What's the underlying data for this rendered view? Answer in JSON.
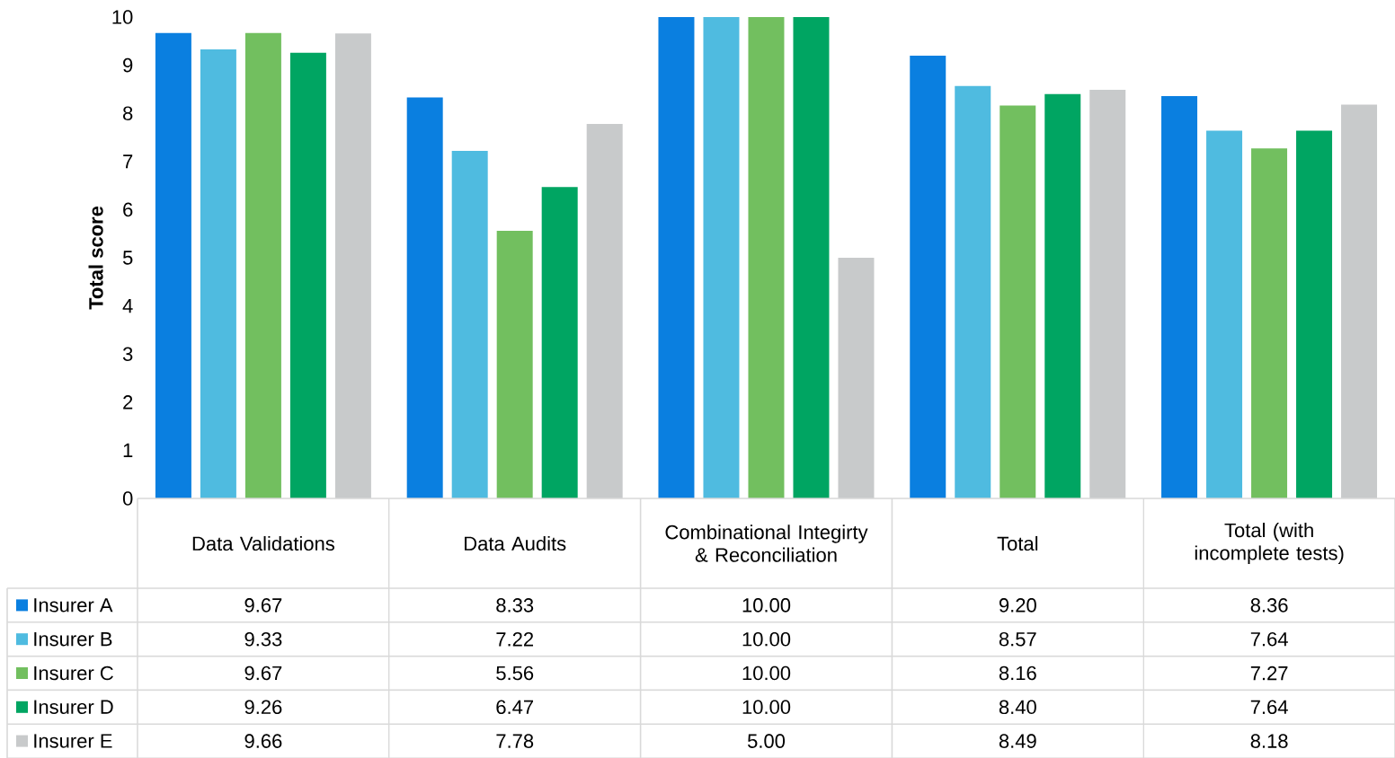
{
  "chart_data": {
    "type": "bar",
    "ylabel": "Total score",
    "categories": [
      "Data Validations",
      "Data Audits",
      "Combinational Integirty & Reconciliation",
      "Total",
      "Total (with incomplete tests)"
    ],
    "series": [
      {
        "name": "Insurer A",
        "color": "#0a7fe0",
        "values": [
          9.67,
          8.33,
          10.0,
          9.2,
          8.36
        ],
        "value_labels": [
          "9.67",
          "8.33",
          "10.00",
          "9.20",
          "8.36"
        ]
      },
      {
        "name": "Insurer B",
        "color": "#4fbbe0",
        "values": [
          9.33,
          7.22,
          10.0,
          8.57,
          7.64
        ],
        "value_labels": [
          "9.33",
          "7.22",
          "10.00",
          "8.57",
          "7.64"
        ]
      },
      {
        "name": "Insurer C",
        "color": "#72bf5f",
        "values": [
          9.67,
          5.56,
          10.0,
          8.16,
          7.27
        ],
        "value_labels": [
          "9.67",
          "5.56",
          "10.00",
          "8.16",
          "7.27"
        ]
      },
      {
        "name": "Insurer D",
        "color": "#00a562",
        "values": [
          9.26,
          6.47,
          10.0,
          8.4,
          7.64
        ],
        "value_labels": [
          "9.26",
          "6.47",
          "10.00",
          "8.40",
          "7.64"
        ]
      },
      {
        "name": "Insurer E",
        "color": "#c8cacb",
        "values": [
          9.66,
          7.78,
          5.0,
          8.49,
          8.18
        ],
        "value_labels": [
          "9.66",
          "7.78",
          "5.00",
          "8.49",
          "8.18"
        ]
      }
    ],
    "ylim": [
      0,
      10
    ],
    "yticks": [
      0,
      1,
      2,
      3,
      4,
      5,
      6,
      7,
      8,
      9,
      10
    ],
    "grid": false,
    "legend": "bottom"
  }
}
